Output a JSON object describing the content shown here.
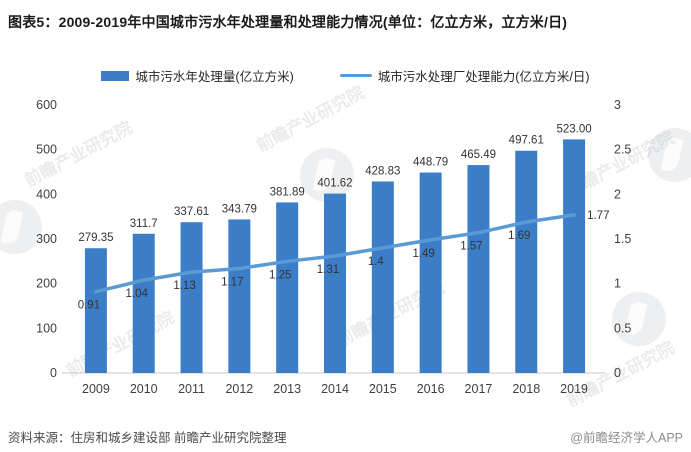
{
  "title": "图表5：2009-2019年中国城市污水年处理量和处理能力情况(单位：亿立方米，立方米/日)",
  "legend": [
    {
      "label": "城市污水年处理量(亿立方米)",
      "type": "bar",
      "color": "#3C7DC8"
    },
    {
      "label": "城市污水处理厂处理能力(亿立方米/日)",
      "type": "line",
      "color": "#5B9BD5"
    }
  ],
  "chart_data": {
    "type": "bar",
    "subtype": "bar+line combo, dual y-axis",
    "categories": [
      "2009",
      "2010",
      "2011",
      "2012",
      "2013",
      "2014",
      "2015",
      "2016",
      "2017",
      "2018",
      "2019"
    ],
    "series": [
      {
        "name": "城市污水年处理量(亿立方米)",
        "type": "bar",
        "axis": "left",
        "color": "#3C7DC8",
        "values": [
          279.35,
          311.7,
          337.61,
          343.79,
          381.89,
          401.62,
          428.83,
          448.79,
          465.49,
          497.61,
          523.0
        ],
        "labels": [
          "279.35",
          "311.7",
          "337.61",
          "343.79",
          "381.89",
          "401.62",
          "428.83",
          "448.79",
          "465.49",
          "497.61",
          "523.00"
        ]
      },
      {
        "name": "城市污水处理厂处理能力(亿立方米/日)",
        "type": "line",
        "axis": "right",
        "color": "#5B9BD5",
        "values": [
          0.91,
          1.04,
          1.13,
          1.17,
          1.25,
          1.31,
          1.4,
          1.49,
          1.57,
          1.69,
          1.77
        ],
        "labels": [
          "0.91",
          "1.04",
          "1.13",
          "1.17",
          "1.25",
          "1.31",
          "1.4",
          "1.49",
          "1.57",
          "1.69",
          "1.77"
        ]
      }
    ],
    "left_axis": {
      "min": 0,
      "max": 600,
      "ticks": [
        0,
        100,
        200,
        300,
        400,
        500,
        600
      ],
      "tick_labels": [
        "0",
        "100",
        "200",
        "300",
        "400",
        "500",
        "600"
      ]
    },
    "right_axis": {
      "min": 0,
      "max": 3,
      "ticks": [
        0,
        0.5,
        1,
        1.5,
        2,
        2.5,
        3
      ],
      "tick_labels": [
        "0",
        "0.5",
        "1",
        "1.5",
        "2",
        "2.5",
        "3"
      ]
    },
    "grid": false,
    "legend_position": "top",
    "title": "图表5：2009-2019年中国城市污水年处理量和处理能力情况(单位：亿立方米，立方米/日)"
  },
  "footer": {
    "source": "资料来源：住房和城乡建设部 前瞻产业研究院整理",
    "brand": "@前瞻经济学人APP"
  },
  "watermark": {
    "text": "前瞻产业研究院"
  },
  "colors": {
    "bar": "#3C7DC8",
    "line": "#5B9BD5",
    "axis_line": "#c9c9c9",
    "label_text": "#404040"
  }
}
